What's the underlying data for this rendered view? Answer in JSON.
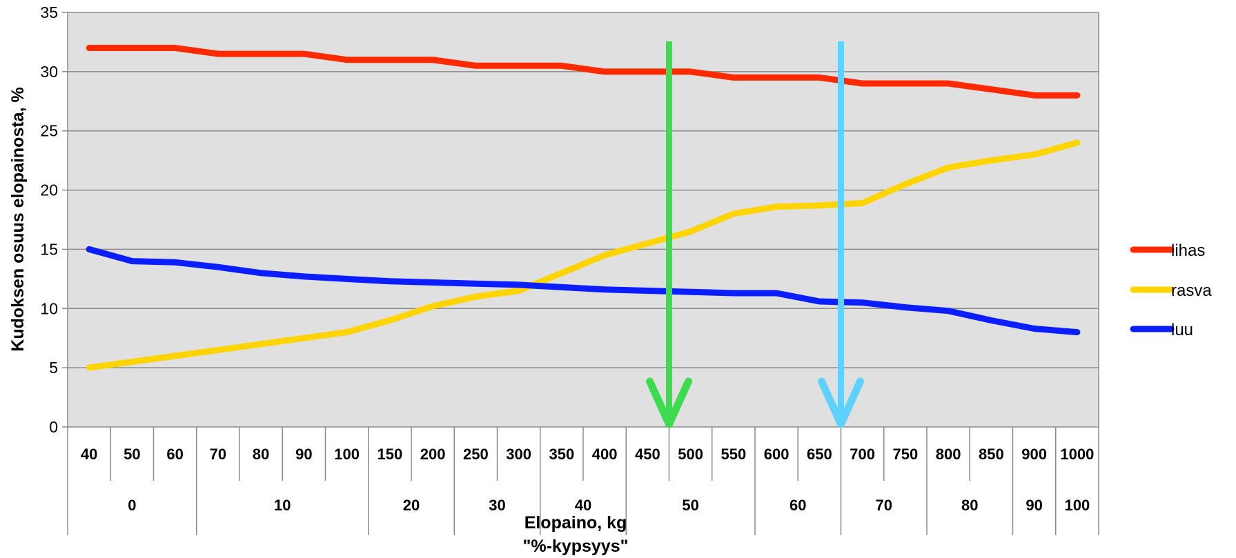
{
  "chart_data": {
    "type": "line",
    "xlabel": "Elopaino, kg",
    "xlabel2": "\"%-kypsyys\"",
    "ylabel": "Kudoksen osuus elopainosta, %",
    "ylim": [
      0,
      35
    ],
    "yticks": [
      "0",
      "5",
      "10",
      "15",
      "20",
      "25",
      "30",
      "35"
    ],
    "grid": true,
    "legend_position": "right",
    "categories": [
      "40",
      "50",
      "60",
      "70",
      "80",
      "90",
      "100",
      "150",
      "200",
      "250",
      "300",
      "350",
      "400",
      "450",
      "500",
      "550",
      "600",
      "650",
      "700",
      "750",
      "800",
      "850",
      "900",
      "1000"
    ],
    "groups": [
      {
        "label": "0",
        "start": 0,
        "end": 3
      },
      {
        "label": "10",
        "start": 3,
        "end": 7
      },
      {
        "label": "20",
        "start": 7,
        "end": 9
      },
      {
        "label": "30",
        "start": 9,
        "end": 11
      },
      {
        "label": "40",
        "start": 11,
        "end": 13
      },
      {
        "label": "50",
        "start": 13,
        "end": 16
      },
      {
        "label": "60",
        "start": 16,
        "end": 18
      },
      {
        "label": "70",
        "start": 18,
        "end": 20
      },
      {
        "label": "80",
        "start": 20,
        "end": 22
      },
      {
        "label": "90",
        "start": 22,
        "end": 23
      },
      {
        "label": "100",
        "start": 23,
        "end": 24
      }
    ],
    "series": [
      {
        "name": "lihas",
        "color": "#ff2a00",
        "values": [
          32,
          32,
          32,
          31.5,
          31.5,
          31.5,
          31,
          31,
          31,
          30.5,
          30.5,
          30.5,
          30,
          30,
          30,
          29.5,
          29.5,
          29.5,
          29,
          29,
          29,
          28.5,
          28,
          28
        ]
      },
      {
        "name": "rasva",
        "color": "#ffd400",
        "values": [
          5,
          5.5,
          6,
          6.5,
          7,
          7.5,
          8,
          9,
          10.2,
          11,
          11.5,
          13,
          14.5,
          15.5,
          16.5,
          18,
          18.6,
          18.7,
          18.9,
          20.5,
          21.9,
          22.5,
          23,
          24
        ]
      },
      {
        "name": "luu",
        "color": "#0a1eff",
        "values": [
          15,
          14,
          13.9,
          13.5,
          13,
          12.7,
          12.5,
          12.3,
          12.2,
          12.1,
          12,
          11.8,
          11.6,
          11.5,
          11.4,
          11.3,
          11.3,
          10.6,
          10.5,
          10.1,
          9.8,
          9,
          8.3,
          8
        ]
      }
    ],
    "arrows": [
      {
        "category": "500",
        "color": "#3ddc4f"
      },
      {
        "category": "700",
        "color": "#5fd1ff"
      }
    ]
  }
}
